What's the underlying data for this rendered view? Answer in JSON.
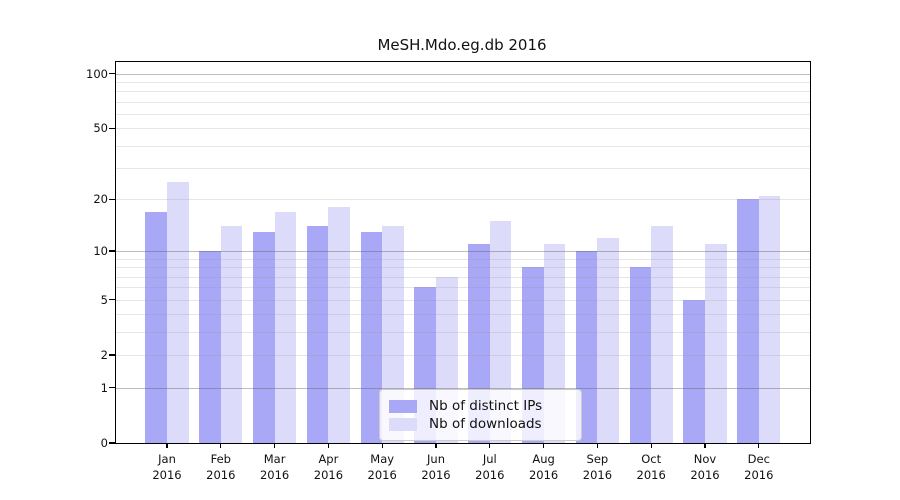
{
  "chart_data": {
    "type": "bar",
    "title": "MeSH.Mdo.eg.db 2016",
    "scale": "log1p",
    "ylim": [
      0,
      116
    ],
    "yticks": [
      100,
      50,
      20,
      10,
      5,
      2,
      1,
      0
    ],
    "grid_major": [
      1,
      10,
      100
    ],
    "grid_minor": [
      2,
      3,
      4,
      5,
      6,
      7,
      8,
      9,
      20,
      30,
      40,
      50,
      60,
      70,
      80,
      90
    ],
    "categories": [
      {
        "month": "Jan",
        "year": "2016"
      },
      {
        "month": "Feb",
        "year": "2016"
      },
      {
        "month": "Mar",
        "year": "2016"
      },
      {
        "month": "Apr",
        "year": "2016"
      },
      {
        "month": "May",
        "year": "2016"
      },
      {
        "month": "Jun",
        "year": "2016"
      },
      {
        "month": "Jul",
        "year": "2016"
      },
      {
        "month": "Aug",
        "year": "2016"
      },
      {
        "month": "Sep",
        "year": "2016"
      },
      {
        "month": "Oct",
        "year": "2016"
      },
      {
        "month": "Nov",
        "year": "2016"
      },
      {
        "month": "Dec",
        "year": "2016"
      }
    ],
    "series": [
      {
        "name": "Nb of distinct IPs",
        "color": "#a8a8f7",
        "values": [
          17,
          10,
          13,
          14,
          13,
          6,
          11,
          8,
          10,
          8,
          5,
          20
        ]
      },
      {
        "name": "Nb of downloads",
        "color": "#dcdcfa",
        "values": [
          25,
          14,
          17,
          18,
          14,
          7,
          15,
          11,
          12,
          14,
          11,
          21
        ]
      }
    ],
    "legend_position": "lower center",
    "xlabel": "",
    "ylabel": ""
  },
  "colors": {
    "axis": "#000000",
    "text": "#111111",
    "grid_major": "#c8c8c8",
    "grid_minor": "#ececec",
    "legend_border": "#cccccc"
  }
}
